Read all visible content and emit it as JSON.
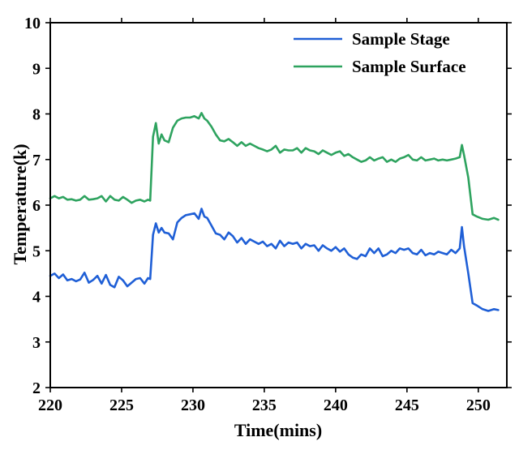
{
  "chart_data": {
    "type": "line",
    "title": "",
    "xlabel": "Time(mins)",
    "ylabel": "Temperature(k)",
    "xlim": [
      220,
      252
    ],
    "ylim": [
      2,
      10
    ],
    "xticks": [
      220,
      225,
      230,
      235,
      240,
      245,
      250
    ],
    "yticks": [
      2,
      3,
      4,
      5,
      6,
      7,
      8,
      9,
      10
    ],
    "legend_position": "top-right",
    "grid": false,
    "series": [
      {
        "name": "Sample Stage",
        "color": "#1f5fd6",
        "x": [
          220.0,
          220.3,
          220.6,
          220.9,
          221.2,
          221.5,
          221.8,
          222.1,
          222.4,
          222.7,
          223.0,
          223.3,
          223.6,
          223.9,
          224.2,
          224.5,
          224.8,
          225.1,
          225.4,
          225.7,
          226.0,
          226.3,
          226.6,
          226.85,
          227.0,
          227.2,
          227.4,
          227.6,
          227.8,
          228.0,
          228.3,
          228.6,
          228.9,
          229.2,
          229.5,
          229.8,
          230.1,
          230.4,
          230.6,
          230.8,
          231.0,
          231.3,
          231.6,
          231.9,
          232.2,
          232.5,
          232.8,
          233.1,
          233.4,
          233.7,
          234.0,
          234.3,
          234.6,
          234.9,
          235.2,
          235.5,
          235.8,
          236.1,
          236.4,
          236.7,
          237.0,
          237.3,
          237.6,
          237.9,
          238.2,
          238.5,
          238.8,
          239.1,
          239.4,
          239.7,
          240.0,
          240.3,
          240.6,
          240.9,
          241.2,
          241.5,
          241.8,
          242.1,
          242.4,
          242.7,
          243.0,
          243.3,
          243.6,
          243.9,
          244.2,
          244.5,
          244.8,
          245.1,
          245.4,
          245.7,
          246.0,
          246.3,
          246.6,
          246.9,
          247.2,
          247.5,
          247.8,
          248.1,
          248.4,
          248.7,
          248.85,
          249.0,
          249.3,
          249.6,
          249.9,
          250.3,
          250.7,
          251.1,
          251.4
        ],
        "values": [
          4.45,
          4.5,
          4.4,
          4.48,
          4.35,
          4.38,
          4.33,
          4.37,
          4.52,
          4.3,
          4.36,
          4.45,
          4.28,
          4.47,
          4.25,
          4.2,
          4.43,
          4.35,
          4.22,
          4.3,
          4.38,
          4.4,
          4.28,
          4.4,
          4.38,
          5.35,
          5.6,
          5.4,
          5.5,
          5.4,
          5.38,
          5.25,
          5.62,
          5.72,
          5.78,
          5.8,
          5.82,
          5.7,
          5.92,
          5.75,
          5.72,
          5.55,
          5.38,
          5.35,
          5.25,
          5.4,
          5.32,
          5.18,
          5.28,
          5.15,
          5.25,
          5.2,
          5.15,
          5.2,
          5.1,
          5.15,
          5.05,
          5.22,
          5.1,
          5.18,
          5.15,
          5.18,
          5.05,
          5.15,
          5.1,
          5.12,
          5.0,
          5.12,
          5.05,
          5.0,
          5.08,
          4.98,
          5.05,
          4.92,
          4.85,
          4.82,
          4.92,
          4.88,
          5.05,
          4.95,
          5.05,
          4.88,
          4.92,
          5.0,
          4.95,
          5.05,
          5.02,
          5.05,
          4.95,
          4.92,
          5.02,
          4.9,
          4.95,
          4.92,
          4.98,
          4.95,
          4.92,
          5.02,
          4.95,
          5.05,
          5.52,
          5.1,
          4.5,
          3.85,
          3.8,
          3.72,
          3.68,
          3.72,
          3.7
        ]
      },
      {
        "name": "Sample Surface",
        "color": "#2ea35f",
        "x": [
          220.0,
          220.3,
          220.6,
          220.9,
          221.2,
          221.5,
          221.8,
          222.1,
          222.4,
          222.7,
          223.0,
          223.3,
          223.6,
          223.9,
          224.2,
          224.5,
          224.8,
          225.1,
          225.4,
          225.7,
          226.0,
          226.3,
          226.6,
          226.85,
          227.0,
          227.2,
          227.4,
          227.6,
          227.8,
          228.0,
          228.3,
          228.6,
          228.9,
          229.2,
          229.5,
          229.8,
          230.1,
          230.4,
          230.6,
          230.8,
          231.0,
          231.3,
          231.6,
          231.9,
          232.2,
          232.5,
          232.8,
          233.1,
          233.4,
          233.7,
          234.0,
          234.3,
          234.6,
          234.9,
          235.2,
          235.5,
          235.8,
          236.1,
          236.4,
          236.7,
          237.0,
          237.3,
          237.6,
          237.9,
          238.2,
          238.5,
          238.8,
          239.1,
          239.4,
          239.7,
          240.0,
          240.3,
          240.6,
          240.9,
          241.2,
          241.5,
          241.8,
          242.1,
          242.4,
          242.7,
          243.0,
          243.3,
          243.6,
          243.9,
          244.2,
          244.5,
          244.8,
          245.1,
          245.4,
          245.7,
          246.0,
          246.3,
          246.6,
          246.9,
          247.2,
          247.5,
          247.8,
          248.1,
          248.4,
          248.7,
          248.85,
          249.0,
          249.3,
          249.6,
          249.9,
          250.3,
          250.7,
          251.1,
          251.4
        ],
        "values": [
          6.15,
          6.2,
          6.15,
          6.18,
          6.12,
          6.13,
          6.1,
          6.12,
          6.2,
          6.12,
          6.13,
          6.15,
          6.2,
          6.08,
          6.2,
          6.12,
          6.1,
          6.18,
          6.12,
          6.05,
          6.1,
          6.12,
          6.08,
          6.12,
          6.1,
          7.5,
          7.8,
          7.35,
          7.55,
          7.42,
          7.38,
          7.7,
          7.85,
          7.9,
          7.92,
          7.92,
          7.95,
          7.9,
          8.02,
          7.9,
          7.85,
          7.72,
          7.55,
          7.42,
          7.4,
          7.45,
          7.38,
          7.3,
          7.38,
          7.3,
          7.35,
          7.3,
          7.25,
          7.22,
          7.18,
          7.22,
          7.3,
          7.15,
          7.22,
          7.2,
          7.2,
          7.25,
          7.15,
          7.25,
          7.2,
          7.18,
          7.12,
          7.2,
          7.15,
          7.1,
          7.15,
          7.18,
          7.08,
          7.12,
          7.05,
          7.0,
          6.95,
          6.98,
          7.05,
          6.98,
          7.02,
          7.05,
          6.95,
          7.0,
          6.95,
          7.02,
          7.05,
          7.1,
          7.0,
          6.98,
          7.05,
          6.98,
          7.0,
          7.02,
          6.98,
          7.0,
          6.98,
          7.0,
          7.02,
          7.05,
          7.32,
          7.1,
          6.6,
          5.8,
          5.75,
          5.7,
          5.68,
          5.72,
          5.68
        ]
      }
    ]
  }
}
